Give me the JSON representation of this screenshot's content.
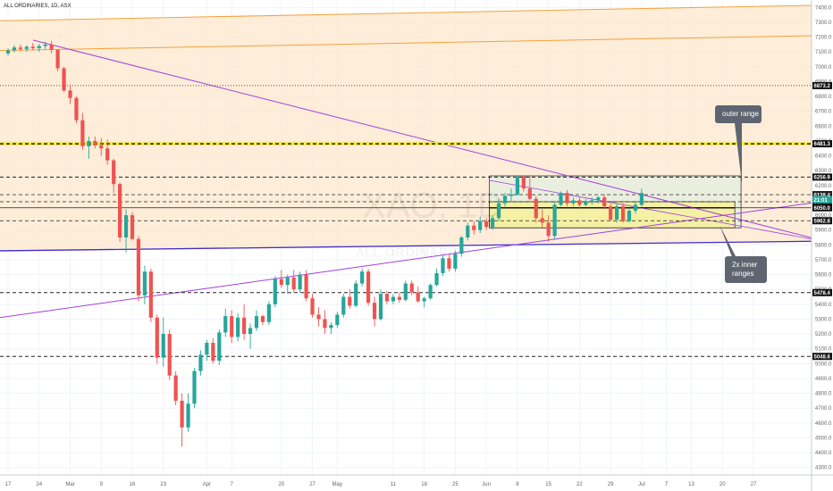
{
  "chart_data": {
    "type": "candlestick",
    "title": "ALL ORDINARIES, 1D, ASX",
    "watermark": {
      "symbol": "XAO, 1D",
      "name": "ALL ORDINARIES"
    },
    "ylim": [
      4250,
      7450
    ],
    "y_ticks": [
      7400,
      7300,
      7200,
      7100,
      7000,
      6900,
      6800,
      6700,
      6600,
      6500,
      6400,
      6300,
      6200,
      6100,
      6000,
      5900,
      5800,
      5700,
      5600,
      5500,
      5400,
      5300,
      5200,
      5100,
      5000,
      4900,
      4800,
      4700,
      4600,
      4500,
      4400,
      4300
    ],
    "x_ticks": [
      {
        "label": "17",
        "bar": 0
      },
      {
        "label": "24",
        "bar": 5
      },
      {
        "label": "Mar",
        "bar": 10
      },
      {
        "label": "9",
        "bar": 15
      },
      {
        "label": "16",
        "bar": 20
      },
      {
        "label": "23",
        "bar": 25
      },
      {
        "label": "Apr",
        "bar": 32
      },
      {
        "label": "7",
        "bar": 36
      },
      {
        "label": "20",
        "bar": 44
      },
      {
        "label": "27",
        "bar": 49
      },
      {
        "label": "May",
        "bar": 53
      },
      {
        "label": "11",
        "bar": 62
      },
      {
        "label": "18",
        "bar": 67
      },
      {
        "label": "25",
        "bar": 72
      },
      {
        "label": "Jun",
        "bar": 77
      },
      {
        "label": "8",
        "bar": 82
      },
      {
        "label": "15",
        "bar": 87
      },
      {
        "label": "22",
        "bar": 92
      },
      {
        "label": "29",
        "bar": 97
      },
      {
        "label": "Jul",
        "bar": 102
      },
      {
        "label": "7",
        "bar": 106
      },
      {
        "label": "13",
        "bar": 110
      },
      {
        "label": "20",
        "bar": 115
      },
      {
        "label": "27",
        "bar": 120
      }
    ],
    "candles": [
      {
        "o": 7090,
        "h": 7125,
        "l": 7075,
        "c": 7110
      },
      {
        "o": 7110,
        "h": 7145,
        "l": 7095,
        "c": 7130
      },
      {
        "o": 7130,
        "h": 7150,
        "l": 7105,
        "c": 7120
      },
      {
        "o": 7120,
        "h": 7145,
        "l": 7100,
        "c": 7135
      },
      {
        "o": 7135,
        "h": 7160,
        "l": 7110,
        "c": 7125
      },
      {
        "o": 7125,
        "h": 7155,
        "l": 7100,
        "c": 7140
      },
      {
        "o": 7140,
        "h": 7170,
        "l": 7120,
        "c": 7150
      },
      {
        "o": 7150,
        "h": 7175,
        "l": 7090,
        "c": 7115
      },
      {
        "o": 7115,
        "h": 7120,
        "l": 6970,
        "c": 6990
      },
      {
        "o": 6990,
        "h": 7000,
        "l": 6830,
        "c": 6840
      },
      {
        "o": 6840,
        "h": 6880,
        "l": 6750,
        "c": 6790
      },
      {
        "o": 6790,
        "h": 6800,
        "l": 6620,
        "c": 6640
      },
      {
        "o": 6640,
        "h": 6690,
        "l": 6440,
        "c": 6465
      },
      {
        "o": 6465,
        "h": 6530,
        "l": 6380,
        "c": 6500
      },
      {
        "o": 6500,
        "h": 6530,
        "l": 6450,
        "c": 6470
      },
      {
        "o": 6470,
        "h": 6520,
        "l": 6400,
        "c": 6450
      },
      {
        "o": 6450,
        "h": 6510,
        "l": 6340,
        "c": 6370
      },
      {
        "o": 6370,
        "h": 6380,
        "l": 6150,
        "c": 6210
      },
      {
        "o": 6210,
        "h": 6220,
        "l": 5820,
        "c": 5850
      },
      {
        "o": 5850,
        "h": 6040,
        "l": 5750,
        "c": 6000
      },
      {
        "o": 6000,
        "h": 6020,
        "l": 5830,
        "c": 5840
      },
      {
        "o": 5840,
        "h": 5860,
        "l": 5420,
        "c": 5460
      },
      {
        "o": 5460,
        "h": 5660,
        "l": 5400,
        "c": 5620
      },
      {
        "o": 5620,
        "h": 5640,
        "l": 5280,
        "c": 5310
      },
      {
        "o": 5310,
        "h": 5330,
        "l": 5000,
        "c": 5040
      },
      {
        "o": 5040,
        "h": 5310,
        "l": 4980,
        "c": 5200
      },
      {
        "o": 5200,
        "h": 5230,
        "l": 4890,
        "c": 4920
      },
      {
        "o": 4920,
        "h": 4950,
        "l": 4720,
        "c": 4750
      },
      {
        "o": 4750,
        "h": 4800,
        "l": 4440,
        "c": 4570
      },
      {
        "o": 4570,
        "h": 4800,
        "l": 4540,
        "c": 4730
      },
      {
        "o": 4730,
        "h": 4970,
        "l": 4700,
        "c": 4950
      },
      {
        "o": 4950,
        "h": 5090,
        "l": 4920,
        "c": 5060
      },
      {
        "o": 5060,
        "h": 5160,
        "l": 5020,
        "c": 5140
      },
      {
        "o": 5140,
        "h": 5170,
        "l": 5000,
        "c": 5020
      },
      {
        "o": 5020,
        "h": 5230,
        "l": 4990,
        "c": 5210
      },
      {
        "o": 5210,
        "h": 5370,
        "l": 5180,
        "c": 5320
      },
      {
        "o": 5320,
        "h": 5360,
        "l": 5140,
        "c": 5180
      },
      {
        "o": 5180,
        "h": 5340,
        "l": 5150,
        "c": 5310
      },
      {
        "o": 5310,
        "h": 5400,
        "l": 5160,
        "c": 5200
      },
      {
        "o": 5200,
        "h": 5270,
        "l": 5100,
        "c": 5240
      },
      {
        "o": 5240,
        "h": 5360,
        "l": 5220,
        "c": 5320
      },
      {
        "o": 5320,
        "h": 5330,
        "l": 5260,
        "c": 5280
      },
      {
        "o": 5280,
        "h": 5420,
        "l": 5260,
        "c": 5400
      },
      {
        "o": 5400,
        "h": 5590,
        "l": 5380,
        "c": 5570
      },
      {
        "o": 5570,
        "h": 5630,
        "l": 5510,
        "c": 5530
      },
      {
        "o": 5530,
        "h": 5600,
        "l": 5470,
        "c": 5580
      },
      {
        "o": 5580,
        "h": 5630,
        "l": 5480,
        "c": 5500
      },
      {
        "o": 5500,
        "h": 5620,
        "l": 5480,
        "c": 5600
      },
      {
        "o": 5600,
        "h": 5630,
        "l": 5420,
        "c": 5440
      },
      {
        "o": 5440,
        "h": 5470,
        "l": 5310,
        "c": 5330
      },
      {
        "o": 5330,
        "h": 5380,
        "l": 5250,
        "c": 5300
      },
      {
        "o": 5300,
        "h": 5360,
        "l": 5200,
        "c": 5240
      },
      {
        "o": 5240,
        "h": 5280,
        "l": 5200,
        "c": 5260
      },
      {
        "o": 5260,
        "h": 5350,
        "l": 5240,
        "c": 5330
      },
      {
        "o": 5330,
        "h": 5470,
        "l": 5310,
        "c": 5450
      },
      {
        "o": 5450,
        "h": 5500,
        "l": 5370,
        "c": 5390
      },
      {
        "o": 5390,
        "h": 5560,
        "l": 5380,
        "c": 5540
      },
      {
        "o": 5540,
        "h": 5640,
        "l": 5520,
        "c": 5620
      },
      {
        "o": 5620,
        "h": 5640,
        "l": 5390,
        "c": 5410
      },
      {
        "o": 5410,
        "h": 5450,
        "l": 5250,
        "c": 5300
      },
      {
        "o": 5300,
        "h": 5500,
        "l": 5290,
        "c": 5470
      },
      {
        "o": 5470,
        "h": 5490,
        "l": 5400,
        "c": 5420
      },
      {
        "o": 5420,
        "h": 5470,
        "l": 5400,
        "c": 5450
      },
      {
        "o": 5450,
        "h": 5480,
        "l": 5410,
        "c": 5430
      },
      {
        "o": 5430,
        "h": 5560,
        "l": 5420,
        "c": 5540
      },
      {
        "o": 5540,
        "h": 5560,
        "l": 5460,
        "c": 5480
      },
      {
        "o": 5480,
        "h": 5520,
        "l": 5410,
        "c": 5420
      },
      {
        "o": 5420,
        "h": 5450,
        "l": 5380,
        "c": 5440
      },
      {
        "o": 5440,
        "h": 5540,
        "l": 5430,
        "c": 5530
      },
      {
        "o": 5530,
        "h": 5640,
        "l": 5520,
        "c": 5610
      },
      {
        "o": 5610,
        "h": 5730,
        "l": 5590,
        "c": 5710
      },
      {
        "o": 5710,
        "h": 5740,
        "l": 5620,
        "c": 5640
      },
      {
        "o": 5640,
        "h": 5760,
        "l": 5620,
        "c": 5740
      },
      {
        "o": 5740,
        "h": 5860,
        "l": 5720,
        "c": 5850
      },
      {
        "o": 5850,
        "h": 5950,
        "l": 5830,
        "c": 5930
      },
      {
        "o": 5930,
        "h": 5960,
        "l": 5870,
        "c": 5900
      },
      {
        "o": 5900,
        "h": 5990,
        "l": 5880,
        "c": 5960
      },
      {
        "o": 5960,
        "h": 5980,
        "l": 5900,
        "c": 5920
      },
      {
        "o": 5920,
        "h": 6000,
        "l": 5900,
        "c": 5980
      },
      {
        "o": 5980,
        "h": 6110,
        "l": 5960,
        "c": 6080
      },
      {
        "o": 6080,
        "h": 6150,
        "l": 6060,
        "c": 6130
      },
      {
        "o": 6130,
        "h": 6180,
        "l": 6090,
        "c": 6140
      },
      {
        "o": 6140,
        "h": 6270,
        "l": 6130,
        "c": 6260
      },
      {
        "o": 6260,
        "h": 6270,
        "l": 6160,
        "c": 6180
      },
      {
        "o": 6180,
        "h": 6270,
        "l": 6100,
        "c": 6110
      },
      {
        "o": 6110,
        "h": 6130,
        "l": 5950,
        "c": 5980
      },
      {
        "o": 5980,
        "h": 6040,
        "l": 5920,
        "c": 5950
      },
      {
        "o": 5950,
        "h": 6000,
        "l": 5820,
        "c": 5860
      },
      {
        "o": 5860,
        "h": 6090,
        "l": 5840,
        "c": 6070
      },
      {
        "o": 6070,
        "h": 6160,
        "l": 6060,
        "c": 6150
      },
      {
        "o": 6150,
        "h": 6170,
        "l": 6060,
        "c": 6080
      },
      {
        "o": 6080,
        "h": 6120,
        "l": 6060,
        "c": 6100
      },
      {
        "o": 6100,
        "h": 6120,
        "l": 6040,
        "c": 6070
      },
      {
        "o": 6070,
        "h": 6110,
        "l": 6060,
        "c": 6090
      },
      {
        "o": 6090,
        "h": 6120,
        "l": 6070,
        "c": 6100
      },
      {
        "o": 6100,
        "h": 6130,
        "l": 6080,
        "c": 6120
      },
      {
        "o": 6120,
        "h": 6140,
        "l": 6040,
        "c": 6060
      },
      {
        "o": 6060,
        "h": 6080,
        "l": 5960,
        "c": 5970
      },
      {
        "o": 5970,
        "h": 6080,
        "l": 5950,
        "c": 6060
      },
      {
        "o": 6060,
        "h": 6080,
        "l": 5950,
        "c": 5960
      },
      {
        "o": 5960,
        "h": 6050,
        "l": 5950,
        "c": 6030
      },
      {
        "o": 6030,
        "h": 6090,
        "l": 6010,
        "c": 6070
      },
      {
        "o": 6070,
        "h": 6180,
        "l": 6060,
        "c": 6150
      }
    ],
    "price_levels": [
      {
        "price": 6873.2,
        "label": "6873.2",
        "style": "dotted",
        "color": "#222222",
        "width": 0.8
      },
      {
        "price": 6481.3,
        "label": "6481.3",
        "style": "dashed",
        "color": "#111111",
        "width": 1.3,
        "highlight": "#f5e94a"
      },
      {
        "price": 6256.9,
        "label": "6256.9",
        "style": "dashed",
        "color": "#222222",
        "width": 1
      },
      {
        "price": 6138.4,
        "label": "6138.4",
        "style": "dashed",
        "color": "#444444",
        "width": 0.8
      },
      {
        "price": 6090.7,
        "label": "6090.7",
        "style": "dashed",
        "color": "#222222",
        "width": 0.8
      },
      {
        "price": 6050.0,
        "label": "6050.0",
        "style": "solid",
        "color": "#222222",
        "width": 0.8
      },
      {
        "price": 5962.8,
        "label": "5962.8",
        "style": "dashed",
        "color": "#222222",
        "width": 0.8
      },
      {
        "price": 5478.4,
        "label": "5478.4",
        "style": "dashed",
        "color": "#222222",
        "width": 1
      },
      {
        "price": 5048.6,
        "label": "5048.6",
        "style": "dashed",
        "color": "#222222",
        "width": 1
      }
    ],
    "price_tags": [
      {
        "price": 6138.4,
        "label": "6138.4",
        "color": "#222222"
      },
      {
        "price": 6105,
        "label": "21:01",
        "color": "#26a69a"
      }
    ],
    "annotations": [
      {
        "text": "outer range"
      },
      {
        "text": "2x inner\nranges"
      }
    ],
    "grid": true,
    "colors": {
      "up": "#26a69a",
      "down": "#ef5350",
      "shaded_zone": "#fde7cc",
      "outer_box": "#e8efe0",
      "inner_box": "#f7f19a",
      "purple_lines": "#8e2de2",
      "blue_line": "#3d2bd1",
      "orange_lines": "#f2a23b",
      "callout": "#5f6570"
    }
  }
}
